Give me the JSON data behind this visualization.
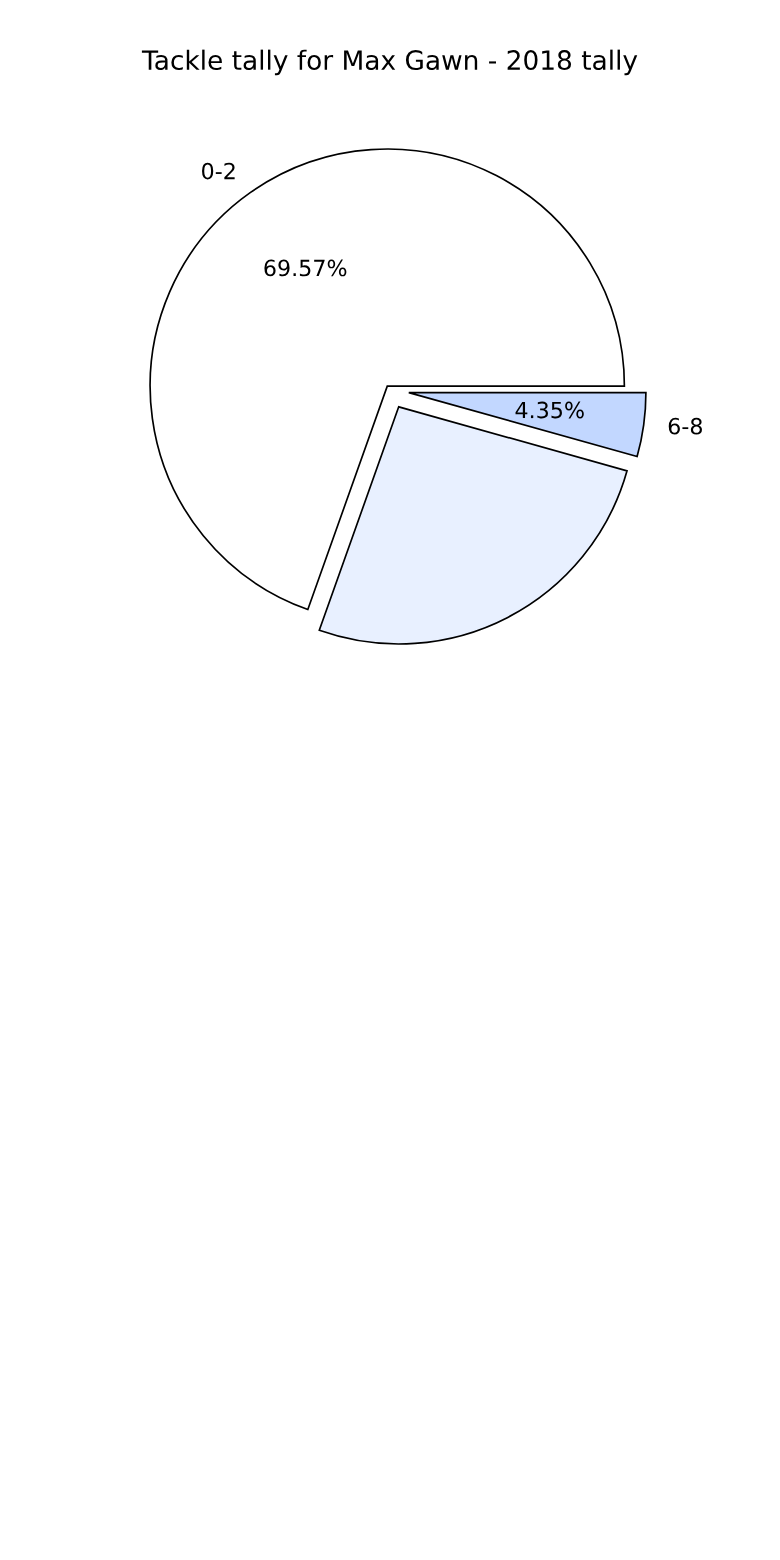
{
  "chart_data": {
    "type": "pie",
    "title": "Tackle tally for Max Gawn - 2018 tally",
    "categories": [
      "0-2",
      null,
      "6-8"
    ],
    "values": [
      69.57,
      26.09,
      4.35
    ],
    "value_labels": [
      "69.57%",
      null,
      "4.35%"
    ],
    "colors": [
      "#ffffff",
      "#e8f0ff",
      "#c2d7ff"
    ]
  }
}
